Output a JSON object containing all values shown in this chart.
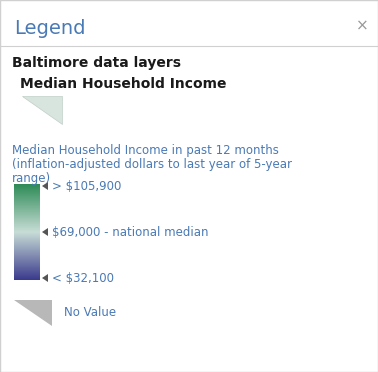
{
  "title": "Legend",
  "close_symbol": "×",
  "section_header": "Baltimore data layers",
  "layer_title": "Median Household Income",
  "desc_line1": "Median Household Income in past 12 months",
  "desc_line2": "(inflation-adjusted dollars to last year of 5-year",
  "desc_line3": "range)",
  "legend_item_top": "> $105,900",
  "legend_item_mid": "$69,000 - national median",
  "legend_item_bot": "< $32,100",
  "no_value_label": "No Value",
  "grad_top_color": "#2d8b57",
  "grad_mid_color": "#c8ddd6",
  "grad_bot_color": "#3a3a8c",
  "bg_color": "#ffffff",
  "border_color": "#d0d0d0",
  "title_color": "#4a7ab5",
  "close_color": "#999999",
  "header_color": "#1a1a1a",
  "layer_title_color": "#1a1a1a",
  "desc_color": "#4a7ab5",
  "label_color": "#4a7ab5",
  "no_value_color": "#4a7ab5",
  "arrow_color": "#555555",
  "no_value_tri_color": "#b8b8b8",
  "layer_tri_color_light": "#d8e5de",
  "layer_tri_color_dark": "#c0cfc8"
}
